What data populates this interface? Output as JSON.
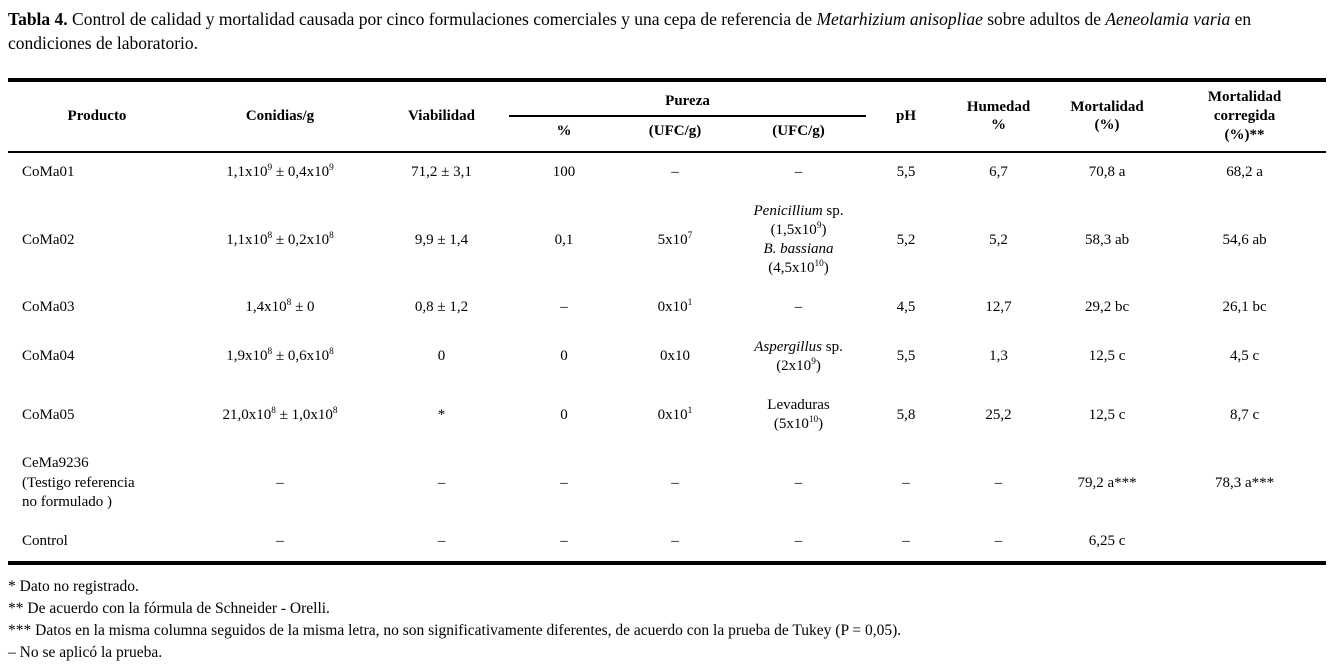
{
  "colors": {
    "text": "#000000",
    "background": "#ffffff",
    "rule": "#000000"
  },
  "caption": "**Tabla 4.** Control de calidad y mortalidad causada por cinco formulaciones comerciales y una cepa de referencia de *Metarhizium anisopliae* sobre adultos de *Aeneolamia varia* en condiciones de laboratorio.",
  "table": {
    "header": {
      "producto": "Producto",
      "conidias": "Conidias/g",
      "viabilidad": "Viabilidad",
      "pureza": "Pureza",
      "pureza_sub": [
        "%",
        "(UFC/g)",
        "(UFC/g)"
      ],
      "ph": "pH",
      "humedad": "Humedad\n%",
      "mortalidad": "Mortalidad\n(%)",
      "mortalidad_corregida": "Mortalidad\ncorregida\n(%)**"
    },
    "rows": [
      [
        "CoMa01",
        "1,1x10^9 ± 0,4x10^9",
        "71,2 ± 3,1",
        "100",
        "–",
        "–",
        "5,5",
        "6,7",
        "70,8 a",
        "68,2 a"
      ],
      [
        "CoMa02",
        "1,1x10^8 ± 0,2x10^8",
        "9,9 ± 1,4",
        "0,1",
        "5x10^7",
        "*Penicillium* sp.\n(1,5x10^9)\n*B. bassiana*\n(4,5x10^10)",
        "5,2",
        "5,2",
        "58,3 ab",
        "54,6 ab"
      ],
      [
        "CoMa03",
        "1,4x10^8 ± 0",
        "0,8 ± 1,2",
        "–",
        "0x10^1",
        "–",
        "4,5",
        "12,7",
        "29,2 bc",
        "26,1 bc"
      ],
      [
        "CoMa04",
        "1,9x10^8 ± 0,6x10^8",
        "0",
        "0",
        "0x10",
        "*Aspergillus* sp.\n(2x10^9)",
        "5,5",
        "1,3",
        "12,5 c",
        "4,5 c"
      ],
      [
        "CoMa05",
        "21,0x10^8 ± 1,0x10^8",
        "*",
        "0",
        "0x10^1",
        "Levaduras\n(5x10^10)",
        "5,8",
        "25,2",
        "12,5 c",
        "8,7 c"
      ],
      [
        "CeMa9236\n(Testigo referencia\nno formulado )",
        "–",
        "–",
        "–",
        "–",
        "–",
        "–",
        "–",
        "79,2 a***",
        "78,3 a***"
      ],
      [
        "Control",
        "–",
        "–",
        "–",
        "–",
        "–",
        "–",
        "–",
        "6,25 c",
        ""
      ]
    ]
  },
  "footnotes": [
    "* Dato no registrado.",
    "** De acuerdo con la fórmula de Schneider - Orelli.",
    "*** Datos en la misma columna seguidos de la misma letra, no son significativamente diferentes, de acuerdo con la prueba de Tukey (P = 0,05).",
    "– No se aplicó la prueba."
  ]
}
